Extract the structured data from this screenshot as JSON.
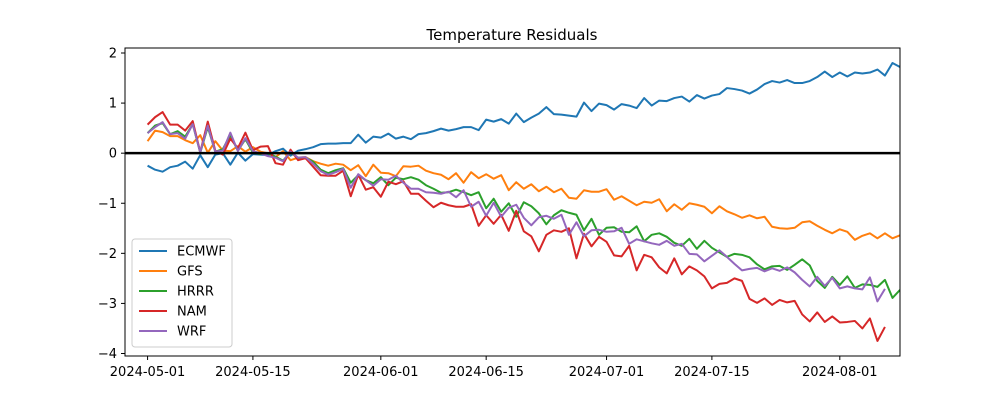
{
  "chart_data": {
    "type": "line",
    "title": "Temperature Residuals",
    "xlabel": "",
    "ylabel": "",
    "x_start": "2024-05-01",
    "x_end": "2024-08-06",
    "xlim": [
      "2024-04-28",
      "2024-08-09"
    ],
    "ylim": [
      -4.05,
      2.1
    ],
    "x_ticks": [
      "2024-05-01",
      "2024-05-15",
      "2024-06-01",
      "2024-06-15",
      "2024-07-01",
      "2024-07-15",
      "2024-08-01"
    ],
    "y_ticks": [
      2,
      1,
      0,
      -1,
      -2,
      -3,
      -4
    ],
    "y_tick_labels": [
      "2",
      "1",
      "0",
      "−1",
      "−2",
      "−3",
      "−4"
    ],
    "reference_line": 0,
    "grid": false,
    "legend": "center-left",
    "series": [
      {
        "name": "ECMWF",
        "color": "#1f77b4",
        "values": [
          -0.25,
          -0.33,
          -0.37,
          -0.28,
          -0.25,
          -0.17,
          -0.31,
          -0.04,
          -0.28,
          -0.03,
          0.0,
          -0.23,
          0.01,
          -0.15,
          -0.02,
          -0.03,
          -0.04,
          0.04,
          0.09,
          -0.05,
          0.05,
          0.08,
          0.12,
          0.18,
          0.19,
          0.19,
          0.2,
          0.2,
          0.37,
          0.21,
          0.33,
          0.31,
          0.39,
          0.29,
          0.33,
          0.28,
          0.38,
          0.4,
          0.44,
          0.49,
          0.45,
          0.48,
          0.52,
          0.52,
          0.46,
          0.67,
          0.63,
          0.68,
          0.59,
          0.79,
          0.62,
          0.71,
          0.79,
          0.92,
          0.78,
          0.77,
          0.75,
          0.73,
          1.01,
          0.84,
          0.99,
          0.96,
          0.87,
          0.98,
          0.95,
          0.9,
          1.1,
          0.95,
          1.05,
          1.04,
          1.1,
          1.13,
          1.03,
          1.16,
          1.09,
          1.15,
          1.18,
          1.3,
          1.28,
          1.25,
          1.19,
          1.27,
          1.38,
          1.44,
          1.41,
          1.46,
          1.4,
          1.4,
          1.44,
          1.52,
          1.63,
          1.52,
          1.61,
          1.53,
          1.61,
          1.59,
          1.61,
          1.67,
          1.55,
          1.8,
          1.72
        ]
      },
      {
        "name": "GFS",
        "color": "#ff7f0e",
        "values": [
          0.24,
          0.45,
          0.42,
          0.34,
          0.34,
          0.26,
          0.2,
          0.36,
          0.01,
          0.24,
          0.05,
          0.04,
          0.14,
          0.03,
          0.12,
          0.03,
          0.0,
          -0.08,
          0.04,
          -0.14,
          -0.09,
          -0.08,
          -0.16,
          -0.21,
          -0.25,
          -0.21,
          -0.23,
          -0.34,
          -0.24,
          -0.46,
          -0.23,
          -0.39,
          -0.4,
          -0.46,
          -0.26,
          -0.27,
          -0.25,
          -0.35,
          -0.4,
          -0.43,
          -0.52,
          -0.4,
          -0.59,
          -0.38,
          -0.5,
          -0.42,
          -0.51,
          -0.44,
          -0.74,
          -0.58,
          -0.71,
          -0.62,
          -0.76,
          -0.67,
          -0.78,
          -0.71,
          -0.89,
          -0.91,
          -0.74,
          -0.77,
          -0.77,
          -0.72,
          -0.93,
          -0.86,
          -0.95,
          -1.04,
          -0.97,
          -0.99,
          -0.92,
          -1.16,
          -1.02,
          -1.13,
          -1.0,
          -1.03,
          -1.07,
          -1.2,
          -1.06,
          -1.16,
          -1.22,
          -1.29,
          -1.24,
          -1.3,
          -1.27,
          -1.47,
          -1.5,
          -1.51,
          -1.49,
          -1.38,
          -1.36,
          -1.45,
          -1.53,
          -1.6,
          -1.52,
          -1.57,
          -1.73,
          -1.65,
          -1.6,
          -1.7,
          -1.6,
          -1.7,
          -1.64
        ]
      },
      {
        "name": "HRRR",
        "color": "#2ca02c",
        "values": [
          0.4,
          0.55,
          0.6,
          0.38,
          0.44,
          0.33,
          0.58,
          0.01,
          0.52,
          0.03,
          0.08,
          0.36,
          0.05,
          0.28,
          0.01,
          -0.02,
          0.0,
          -0.07,
          -0.15,
          0.02,
          -0.1,
          -0.09,
          -0.17,
          -0.33,
          -0.4,
          -0.34,
          -0.3,
          -0.59,
          -0.44,
          -0.54,
          -0.6,
          -0.48,
          -0.64,
          -0.49,
          -0.52,
          -0.48,
          -0.53,
          -0.64,
          -0.71,
          -0.79,
          -0.78,
          -0.73,
          -0.78,
          -0.84,
          -0.78,
          -1.1,
          -0.91,
          -1.17,
          -1.0,
          -1.27,
          -0.98,
          -1.06,
          -1.2,
          -1.42,
          -1.24,
          -1.14,
          -1.19,
          -1.23,
          -1.54,
          -1.31,
          -1.63,
          -1.49,
          -1.48,
          -1.57,
          -1.58,
          -1.46,
          -1.76,
          -1.63,
          -1.6,
          -1.67,
          -1.79,
          -1.85,
          -1.71,
          -1.91,
          -1.75,
          -1.89,
          -1.98,
          -2.07,
          -2.01,
          -2.03,
          -2.08,
          -2.22,
          -2.32,
          -2.26,
          -2.25,
          -2.33,
          -2.23,
          -2.12,
          -2.24,
          -2.55,
          -2.69,
          -2.47,
          -2.63,
          -2.46,
          -2.69,
          -2.62,
          -2.63,
          -2.67,
          -2.53,
          -2.89,
          -2.73
        ]
      },
      {
        "name": "NAM",
        "color": "#d62728",
        "values": [
          0.57,
          0.72,
          0.82,
          0.57,
          0.57,
          0.45,
          0.64,
          0.02,
          0.63,
          0.05,
          -0.03,
          0.29,
          0.1,
          0.41,
          0.06,
          0.13,
          0.14,
          -0.2,
          -0.23,
          0.07,
          -0.14,
          -0.1,
          -0.27,
          -0.44,
          -0.45,
          -0.45,
          -0.35,
          -0.86,
          -0.43,
          -0.73,
          -0.68,
          -0.87,
          -0.57,
          -0.62,
          -0.56,
          -0.81,
          -0.81,
          -0.95,
          -1.08,
          -0.99,
          -1.04,
          -1.07,
          -1.07,
          -1.02,
          -1.45,
          -1.24,
          -1.41,
          -1.23,
          -1.55,
          -1.15,
          -1.56,
          -1.66,
          -1.96,
          -1.63,
          -1.54,
          -1.57,
          -1.5,
          -2.1,
          -1.61,
          -1.86,
          -1.67,
          -1.77,
          -2.04,
          -2.06,
          -1.85,
          -2.34,
          -2.03,
          -2.08,
          -2.28,
          -2.4,
          -2.1,
          -2.42,
          -2.26,
          -2.34,
          -2.46,
          -2.7,
          -2.61,
          -2.59,
          -2.5,
          -2.55,
          -2.91,
          -2.99,
          -2.9,
          -3.03,
          -2.93,
          -2.98,
          -2.95,
          -3.22,
          -3.36,
          -3.18,
          -3.37,
          -3.26,
          -3.38,
          -3.37,
          -3.35,
          -3.5,
          -3.3,
          -3.75,
          -3.47
        ]
      },
      {
        "name": "WRF",
        "color": "#9467bd",
        "values": [
          0.4,
          0.52,
          0.62,
          0.38,
          0.4,
          0.29,
          0.58,
          0.02,
          0.55,
          0.03,
          0.05,
          0.41,
          0.04,
          0.3,
          0.04,
          0.0,
          -0.06,
          -0.09,
          -0.16,
          0.03,
          -0.09,
          -0.08,
          -0.21,
          -0.36,
          -0.43,
          -0.38,
          -0.31,
          -0.69,
          -0.42,
          -0.54,
          -0.65,
          -0.52,
          -0.53,
          -0.45,
          -0.59,
          -0.71,
          -0.71,
          -0.78,
          -0.79,
          -0.81,
          -0.77,
          -0.88,
          -0.74,
          -1.07,
          -0.97,
          -1.25,
          -0.99,
          -1.27,
          -1.09,
          -1.03,
          -1.29,
          -1.44,
          -1.28,
          -1.25,
          -1.31,
          -1.23,
          -1.63,
          -1.38,
          -1.66,
          -1.54,
          -1.53,
          -1.57,
          -1.56,
          -1.49,
          -1.81,
          -1.72,
          -1.76,
          -1.8,
          -1.83,
          -1.75,
          -1.85,
          -1.81,
          -2.01,
          -2.02,
          -2.16,
          -2.05,
          -1.94,
          -2.07,
          -2.21,
          -2.34,
          -2.31,
          -2.29,
          -2.36,
          -2.3,
          -2.35,
          -2.28,
          -2.38,
          -2.53,
          -2.66,
          -2.47,
          -2.65,
          -2.49,
          -2.7,
          -2.66,
          -2.7,
          -2.72,
          -2.48,
          -2.96,
          -2.71
        ]
      }
    ]
  }
}
